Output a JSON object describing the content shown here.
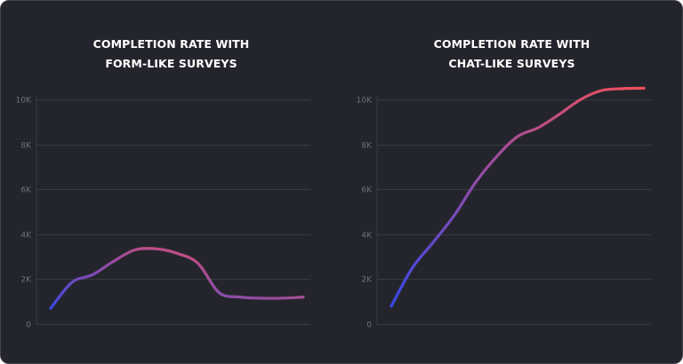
{
  "colors": {
    "background": "#24252c",
    "gridline": "#393a42",
    "tick_text": "#6e707a",
    "title_text": "#ffffff",
    "line_start": "#3b48e8",
    "line_end": "#f0505c"
  },
  "chart_data": [
    {
      "type": "line",
      "title_line1": "COMPLETION RATE WITH",
      "title_line2": "FORM-LIKE SURVEYS",
      "xlabel": "",
      "ylabel": "",
      "ylim": [
        0,
        10000
      ],
      "yticks": [
        {
          "value": 0,
          "label": "0"
        },
        {
          "value": 2000,
          "label": "2K"
        },
        {
          "value": 4000,
          "label": "4K"
        },
        {
          "value": 6000,
          "label": "6K"
        },
        {
          "value": 8000,
          "label": "8K"
        },
        {
          "value": 10000,
          "label": "10K"
        }
      ],
      "grid": true,
      "x": [
        0,
        1,
        2,
        3,
        4,
        5,
        6,
        7,
        8,
        9,
        10,
        11,
        12
      ],
      "series": [
        {
          "values": [
            700,
            1850,
            2200,
            2800,
            3300,
            3350,
            3150,
            2700,
            1400,
            1200,
            1150,
            1150,
            1200
          ]
        }
      ]
    },
    {
      "type": "line",
      "title_line1": "COMPLETION RATE WITH",
      "title_line2": "CHAT-LIKE SURVEYS",
      "xlabel": "",
      "ylabel": "",
      "ylim": [
        0,
        10000
      ],
      "yticks": [
        {
          "value": 0,
          "label": "0"
        },
        {
          "value": 2000,
          "label": "2K"
        },
        {
          "value": 4000,
          "label": "4K"
        },
        {
          "value": 6000,
          "label": "6K"
        },
        {
          "value": 8000,
          "label": "8K"
        },
        {
          "value": 10000,
          "label": "10K"
        }
      ],
      "grid": true,
      "x": [
        0,
        1,
        2,
        3,
        4,
        5,
        6,
        7,
        8,
        9,
        10,
        11,
        12
      ],
      "series": [
        {
          "values": [
            800,
            2500,
            3650,
            4850,
            6300,
            7450,
            8350,
            8750,
            9350,
            10000,
            10400,
            10480,
            10500
          ]
        }
      ]
    }
  ]
}
